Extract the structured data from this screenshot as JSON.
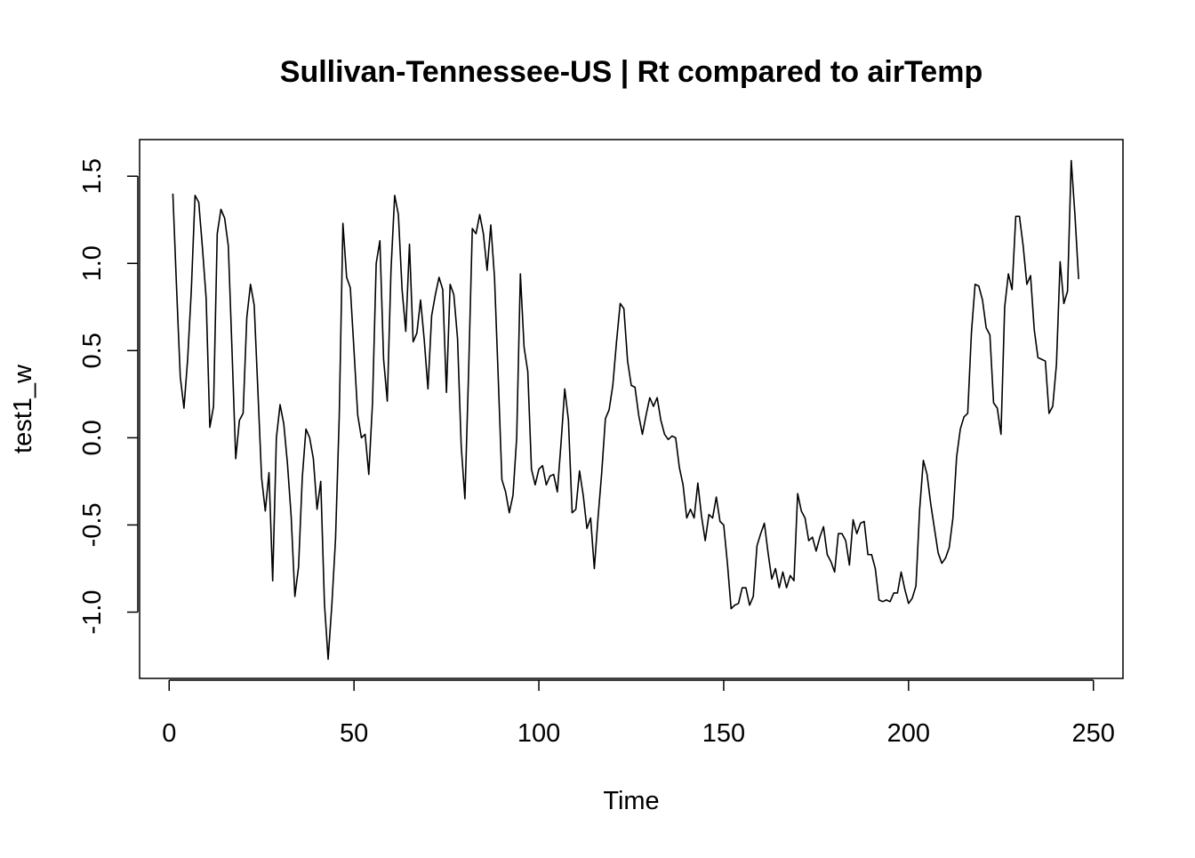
{
  "chart_data": {
    "type": "line",
    "title": "Sullivan-Tennessee-US | Rt compared to airTemp",
    "xlabel": "Time",
    "ylabel": "test1_w",
    "xlim": [
      -8,
      258
    ],
    "ylim": [
      -1.38,
      1.71
    ],
    "xticks": [
      0,
      50,
      100,
      150,
      200,
      250
    ],
    "yticks": [
      -1.0,
      -0.5,
      0.0,
      0.5,
      1.0,
      1.5
    ],
    "xtick_labels": [
      "0",
      "50",
      "100",
      "150",
      "200",
      "250"
    ],
    "ytick_labels": [
      "-1.0",
      "-0.5",
      "0.0",
      "0.5",
      "1.0",
      "1.5"
    ],
    "grid": false,
    "legend": "none",
    "line_color": "#000000",
    "series": [
      {
        "x_start": 1,
        "values": [
          1.4,
          0.86,
          0.35,
          0.17,
          0.45,
          0.85,
          1.39,
          1.35,
          1.09,
          0.8,
          0.06,
          0.18,
          1.17,
          1.31,
          1.26,
          1.1,
          0.5,
          -0.12,
          0.1,
          0.14,
          0.69,
          0.88,
          0.76,
          0.27,
          -0.23,
          -0.42,
          -0.2,
          -0.82,
          0.0,
          0.19,
          0.08,
          -0.15,
          -0.45,
          -0.91,
          -0.74,
          -0.23,
          0.05,
          0.0,
          -0.12,
          -0.41,
          -0.25,
          -0.95,
          -1.27,
          -0.96,
          -0.58,
          0.12,
          1.23,
          0.92,
          0.86,
          0.5,
          0.13,
          0.0,
          0.02,
          -0.21,
          0.2,
          1.0,
          1.13,
          0.45,
          0.21,
          0.96,
          1.39,
          1.28,
          0.85,
          0.61,
          1.11,
          0.55,
          0.6,
          0.79,
          0.56,
          0.28,
          0.7,
          0.82,
          0.92,
          0.85,
          0.26,
          0.88,
          0.82,
          0.57,
          -0.05,
          -0.35,
          0.38,
          1.2,
          1.17,
          1.28,
          1.17,
          0.96,
          1.22,
          0.92,
          0.35,
          -0.24,
          -0.31,
          -0.43,
          -0.33,
          0.0,
          0.94,
          0.52,
          0.38,
          -0.18,
          -0.27,
          -0.18,
          -0.16,
          -0.27,
          -0.22,
          -0.21,
          -0.31,
          -0.03,
          0.28,
          0.1,
          -0.43,
          -0.41,
          -0.19,
          -0.33,
          -0.52,
          -0.46,
          -0.75,
          -0.46,
          -0.2,
          0.11,
          0.16,
          0.3,
          0.55,
          0.77,
          0.74,
          0.44,
          0.3,
          0.29,
          0.13,
          0.02,
          0.13,
          0.23,
          0.18,
          0.23,
          0.1,
          0.02,
          -0.01,
          0.01,
          0.0,
          -0.17,
          -0.27,
          -0.46,
          -0.41,
          -0.46,
          -0.26,
          -0.45,
          -0.59,
          -0.44,
          -0.46,
          -0.34,
          -0.48,
          -0.5,
          -0.72,
          -0.98,
          -0.96,
          -0.95,
          -0.86,
          -0.86,
          -0.96,
          -0.91,
          -0.62,
          -0.55,
          -0.49,
          -0.66,
          -0.81,
          -0.75,
          -0.86,
          -0.77,
          -0.86,
          -0.79,
          -0.82,
          -0.32,
          -0.42,
          -0.46,
          -0.59,
          -0.57,
          -0.65,
          -0.57,
          -0.51,
          -0.67,
          -0.71,
          -0.77,
          -0.55,
          -0.55,
          -0.59,
          -0.73,
          -0.47,
          -0.55,
          -0.49,
          -0.48,
          -0.67,
          -0.67,
          -0.75,
          -0.93,
          -0.94,
          -0.93,
          -0.94,
          -0.89,
          -0.89,
          -0.77,
          -0.87,
          -0.95,
          -0.92,
          -0.85,
          -0.41,
          -0.13,
          -0.21,
          -0.38,
          -0.52,
          -0.66,
          -0.72,
          -0.69,
          -0.63,
          -0.46,
          -0.11,
          0.05,
          0.12,
          0.14,
          0.6,
          0.88,
          0.87,
          0.79,
          0.63,
          0.59,
          0.2,
          0.17,
          0.02,
          0.75,
          0.94,
          0.85,
          1.27,
          1.27,
          1.1,
          0.88,
          0.93,
          0.62,
          0.46,
          0.45,
          0.44,
          0.14,
          0.18,
          0.42,
          1.01,
          0.77,
          0.84,
          1.59,
          1.28,
          0.91
        ]
      }
    ]
  }
}
